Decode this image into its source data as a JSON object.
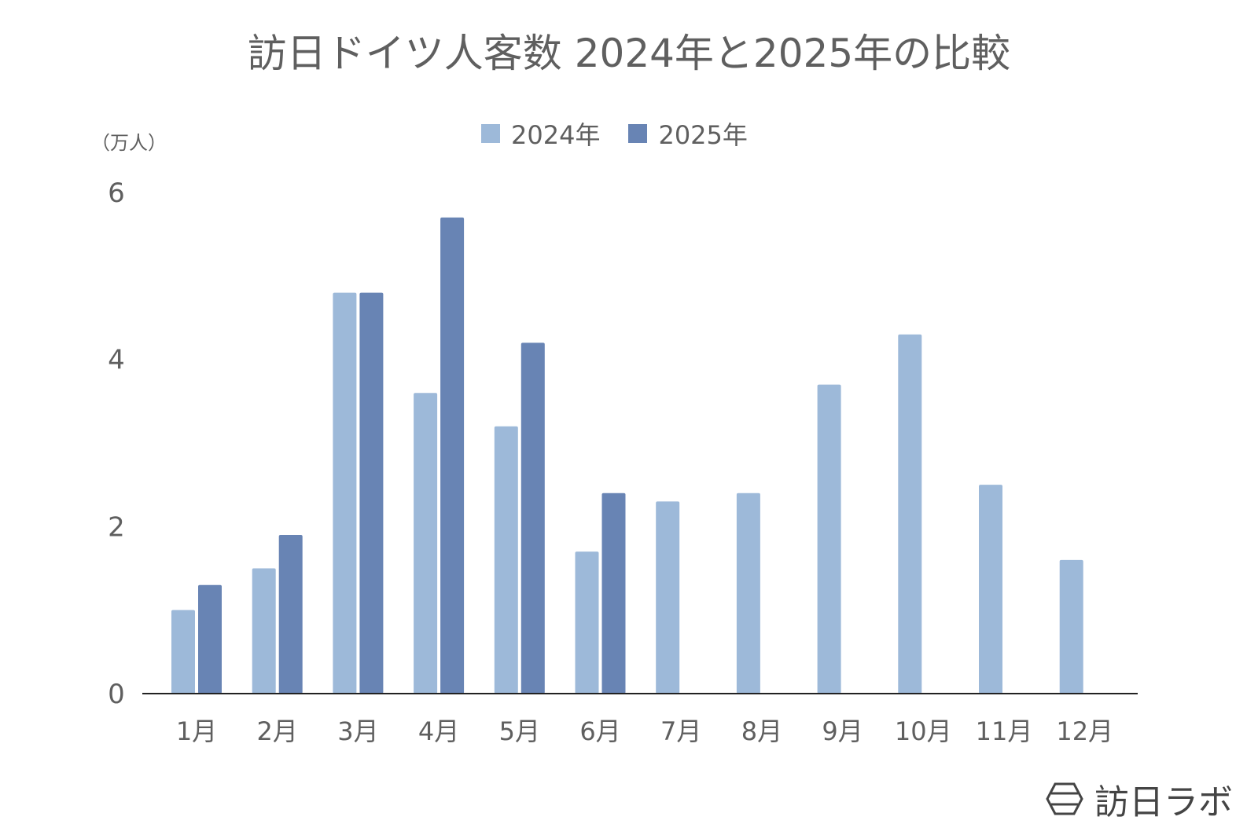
{
  "unit_label": "（万人）",
  "watermark": "訪日ラボ",
  "colors": {
    "series2024": "#9db9d9",
    "series2025": "#6884b4",
    "axis": "#222222",
    "text": "#5f5f5f"
  },
  "chart_data": {
    "type": "bar",
    "title": "訪日ドイツ人客数 2024年と2025年の比較",
    "categories": [
      "1月",
      "2月",
      "3月",
      "4月",
      "5月",
      "6月",
      "7月",
      "8月",
      "9月",
      "10月",
      "11月",
      "12月"
    ],
    "series": [
      {
        "name": "2024年",
        "values": [
          1.0,
          1.5,
          4.8,
          3.6,
          3.2,
          1.7,
          2.3,
          2.4,
          3.7,
          4.3,
          2.5,
          1.6
        ]
      },
      {
        "name": "2025年",
        "values": [
          1.3,
          1.9,
          4.8,
          5.7,
          4.2,
          2.4,
          null,
          null,
          null,
          null,
          null,
          null
        ]
      }
    ],
    "ylim": [
      0,
      6
    ],
    "yticks": [
      0,
      2,
      4,
      6
    ],
    "grid": false,
    "legend_position": "top"
  }
}
